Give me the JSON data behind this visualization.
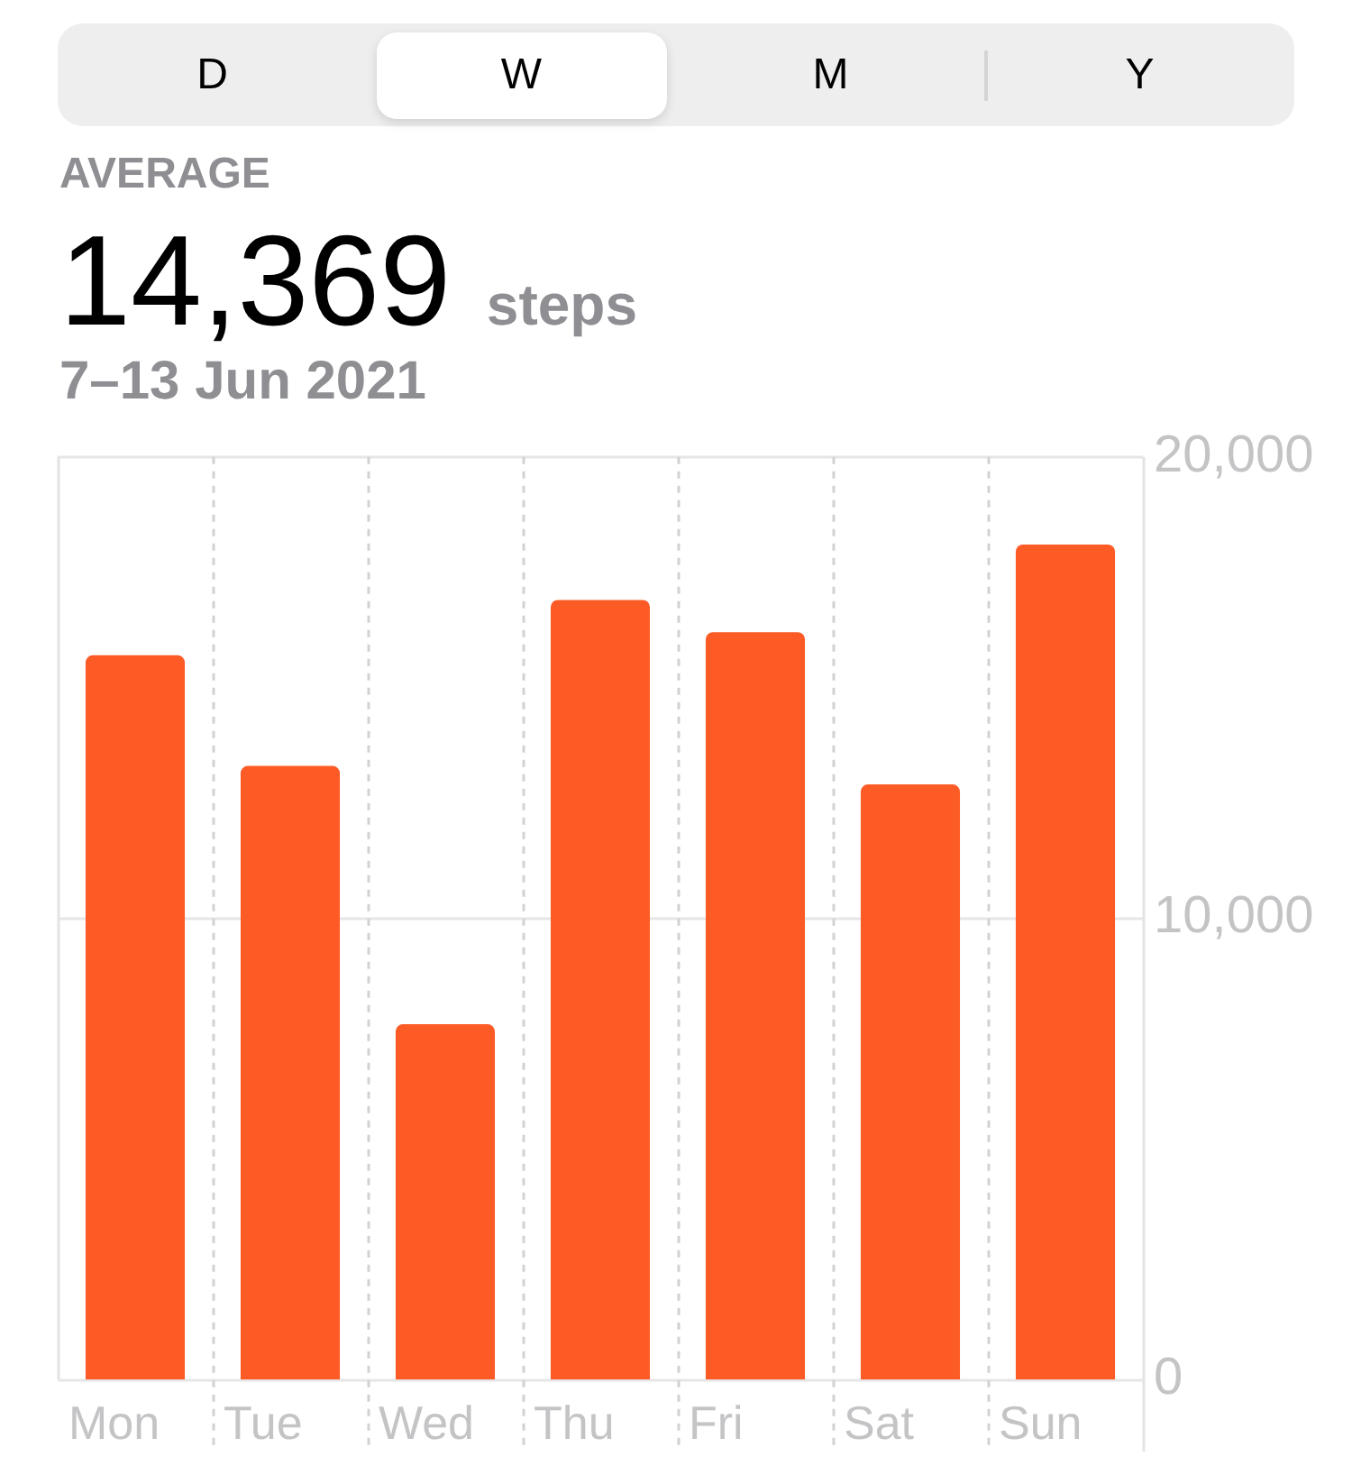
{
  "chart_data": {
    "type": "bar",
    "title": "14,369 steps",
    "subtitle": "7–13 Jun 2021",
    "annotations": [
      "D",
      "W",
      "M",
      "Y",
      "AVERAGE"
    ],
    "categories": [
      "Mon",
      "Tue",
      "Wed",
      "Thu",
      "Fri",
      "Sat",
      "Sun"
    ],
    "values": [
      15700,
      13300,
      7700,
      16900,
      16200,
      12900,
      18100
    ],
    "color": "#fd5b25",
    "ylim": [
      0,
      20000
    ],
    "yticks": [
      {
        "value": 0,
        "label": "0"
      },
      {
        "value": 10000,
        "label": "10,000"
      },
      {
        "value": 20000,
        "label": "20,000"
      }
    ],
    "grid": true
  }
}
